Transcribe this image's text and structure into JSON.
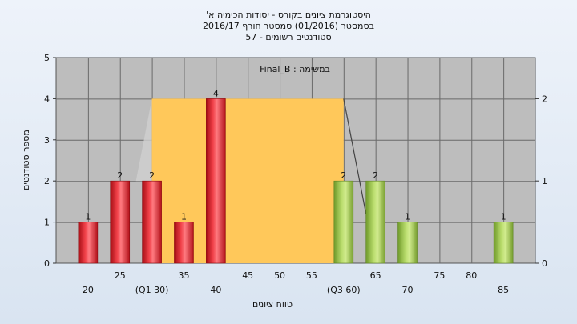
{
  "chart_data": {
    "type": "bar",
    "title_lines": [
      "היסטוגרמת ציונים בקורס - יסודות הכימיה א'",
      "בסמסטר  (01/2016)  סמסטר חורף 2016/17",
      "סטודנטים רשומים - 57"
    ],
    "annotation": "Final_B : במשימה",
    "xlabel": "טווח ציונים",
    "ylabel": "מספר סטודנטים",
    "ylim": [
      0,
      5
    ],
    "yticks": [
      0,
      1,
      2,
      3,
      4,
      5
    ],
    "y2lim": [
      0,
      2.5
    ],
    "y2ticks": [
      0,
      1,
      2
    ],
    "grid": true,
    "x_ticks": [
      {
        "x": 25,
        "label": "25"
      },
      {
        "x": 35,
        "label": "35"
      },
      {
        "x": 45,
        "label": "45"
      },
      {
        "x": 50,
        "label": "50"
      },
      {
        "x": 55,
        "label": "55"
      },
      {
        "x": 65,
        "label": "65"
      },
      {
        "x": 75,
        "label": "75"
      },
      {
        "x": 80,
        "label": "80"
      }
    ],
    "x_ticks_low": [
      {
        "x": 20,
        "label": "20"
      },
      {
        "x": 30,
        "label": "(Q1 30)"
      },
      {
        "x": 40,
        "label": "40"
      },
      {
        "x": 60,
        "label": "(Q3 60)"
      },
      {
        "x": 70,
        "label": "70"
      },
      {
        "x": 85,
        "label": "85"
      }
    ],
    "bars": [
      {
        "x": 20,
        "value": 1,
        "color": "red"
      },
      {
        "x": 25,
        "value": 2,
        "color": "red"
      },
      {
        "x": 30,
        "value": 2,
        "color": "red"
      },
      {
        "x": 35,
        "value": 1,
        "color": "red"
      },
      {
        "x": 40,
        "value": 4,
        "color": "red"
      },
      {
        "x": 60,
        "value": 2,
        "color": "green"
      },
      {
        "x": 65,
        "value": 2,
        "color": "green"
      },
      {
        "x": 70,
        "value": 1,
        "color": "green"
      },
      {
        "x": 85,
        "value": 1,
        "color": "green"
      }
    ],
    "iqr_box": {
      "q1": 30,
      "q3": 60,
      "height": 4,
      "color": "#ffc85a"
    },
    "colors": {
      "plot_bg": "#bdbdbd",
      "red": "#e8212a",
      "green": "#9bc34a",
      "median_line": "#444444"
    }
  }
}
